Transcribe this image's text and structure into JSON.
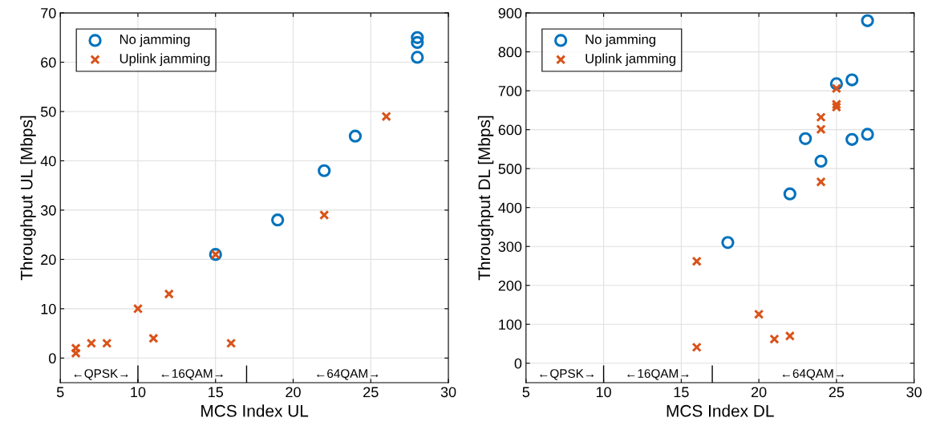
{
  "chart_data": [
    {
      "type": "scatter",
      "xlabel": "MCS Index UL",
      "ylabel": "Throughput UL [Mbps]",
      "xlim": [
        5,
        30
      ],
      "ylim": [
        -5,
        70
      ],
      "xticks": [
        5,
        10,
        15,
        20,
        25,
        30
      ],
      "yticks": [
        0,
        10,
        20,
        30,
        40,
        50,
        60,
        70
      ],
      "grid": true,
      "legend": "top left",
      "series": [
        {
          "name": "No jamming",
          "color": "#0072bd",
          "marker": "circle",
          "x": [
            15,
            19,
            22,
            24,
            28,
            28,
            28
          ],
          "values": [
            21,
            28,
            38,
            45,
            65,
            64,
            61
          ]
        },
        {
          "name": "Uplink jamming",
          "color": "#d95319",
          "marker": "cross",
          "x": [
            6,
            6,
            7,
            8,
            10,
            11,
            12,
            15,
            16,
            22,
            26
          ],
          "values": [
            2,
            1,
            3,
            3,
            10,
            4,
            13,
            21,
            3,
            29,
            49
          ]
        }
      ],
      "annotations": [
        "←QPSK→",
        "←16QAM→",
        "←64QAM→"
      ]
    },
    {
      "type": "scatter",
      "xlabel": "MCS Index DL",
      "ylabel": "Throughput DL [Mbps]",
      "xlim": [
        5,
        30
      ],
      "ylim": [
        -50,
        900
      ],
      "xticks": [
        5,
        10,
        15,
        20,
        25,
        30
      ],
      "yticks": [
        0,
        100,
        200,
        300,
        400,
        500,
        600,
        700,
        800,
        900
      ],
      "grid": true,
      "legend": "top left",
      "series": [
        {
          "name": "No jamming",
          "color": "#0072bd",
          "marker": "circle",
          "x": [
            18,
            22,
            23,
            24,
            25,
            26,
            26,
            27,
            27
          ],
          "values": [
            310,
            435,
            577,
            519,
            718,
            728,
            575,
            588,
            880
          ]
        },
        {
          "name": "Uplink jamming",
          "color": "#d95319",
          "marker": "cross",
          "x": [
            16,
            16,
            20,
            21,
            22,
            24,
            24,
            24,
            25,
            25,
            25
          ],
          "values": [
            262,
            41,
            126,
            62,
            70,
            632,
            601,
            466,
            706,
            665,
            658
          ]
        }
      ],
      "annotations": [
        "←QPSK→",
        "←16QAM→",
        "←64QAM→"
      ]
    }
  ]
}
